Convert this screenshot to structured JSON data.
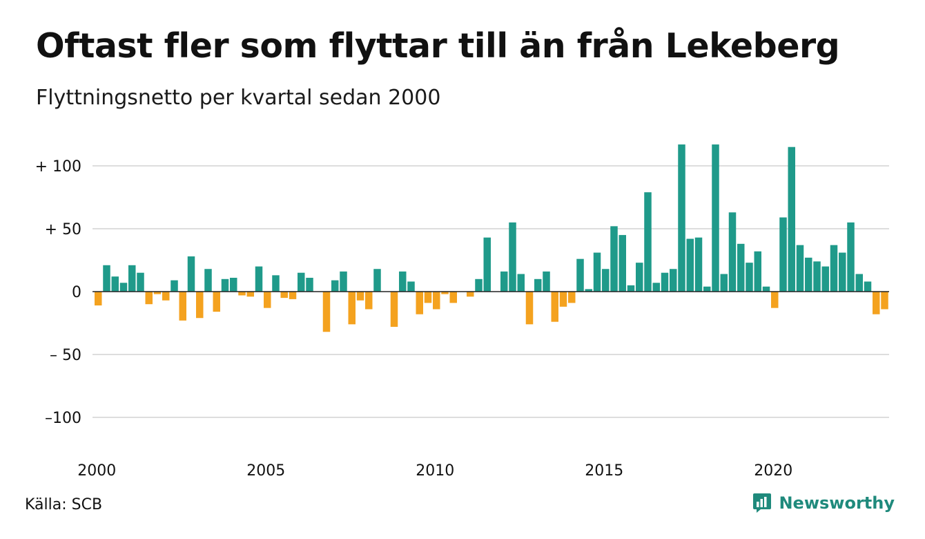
{
  "header": {
    "title": "Oftast fler som flyttar till än från Lekeberg",
    "subtitle": "Flyttningsnetto per kvartal sedan 2000"
  },
  "footer": {
    "source": "Källa: SCB",
    "brand": "Newsworthy",
    "brand_icon": "chart-speech-bubble-icon"
  },
  "colors": {
    "positive": "#1f9a8a",
    "negative": "#f4a21f",
    "grid": "#dddddd",
    "zero": "#222222",
    "brand": "#1f8a7c"
  },
  "chart_data": {
    "type": "bar",
    "title": "Oftast fler som flyttar till än från Lekeberg",
    "subtitle": "Flyttningsnetto per kvartal sedan 2000",
    "xlabel": "",
    "ylabel": "",
    "ylim": [
      -120,
      120
    ],
    "yticks": [
      100,
      50,
      0,
      -50,
      -100
    ],
    "ytick_labels": [
      "+ 100",
      "+  50",
      "0",
      "– 50",
      "–100"
    ],
    "xticks": [
      2000,
      2005,
      2010,
      2015,
      2020
    ],
    "xtick_labels": [
      "2000",
      "2005",
      "2010",
      "2015",
      "2020"
    ],
    "x_start_year": 2000,
    "quarters_per_year": 4,
    "grid": true,
    "values": [
      -11,
      21,
      12,
      7,
      21,
      15,
      -10,
      -2,
      -7,
      9,
      -23,
      28,
      -21,
      18,
      -16,
      10,
      11,
      -3,
      -4,
      20,
      -13,
      13,
      -5,
      -6,
      15,
      11,
      0,
      -32,
      9,
      16,
      -26,
      -7,
      -14,
      18,
      0,
      -28,
      16,
      8,
      -18,
      -9,
      -14,
      -2,
      -9,
      0,
      -4,
      10,
      43,
      0,
      16,
      55,
      14,
      -26,
      10,
      16,
      -24,
      -12,
      -9,
      26,
      2,
      31,
      18,
      52,
      45,
      5,
      23,
      79,
      7,
      15,
      18,
      117,
      42,
      43,
      4,
      117,
      14,
      63,
      38,
      23,
      32,
      4,
      -13,
      59,
      115,
      37,
      27,
      24,
      20,
      37,
      31,
      55,
      14,
      8,
      -18,
      -14
    ]
  }
}
